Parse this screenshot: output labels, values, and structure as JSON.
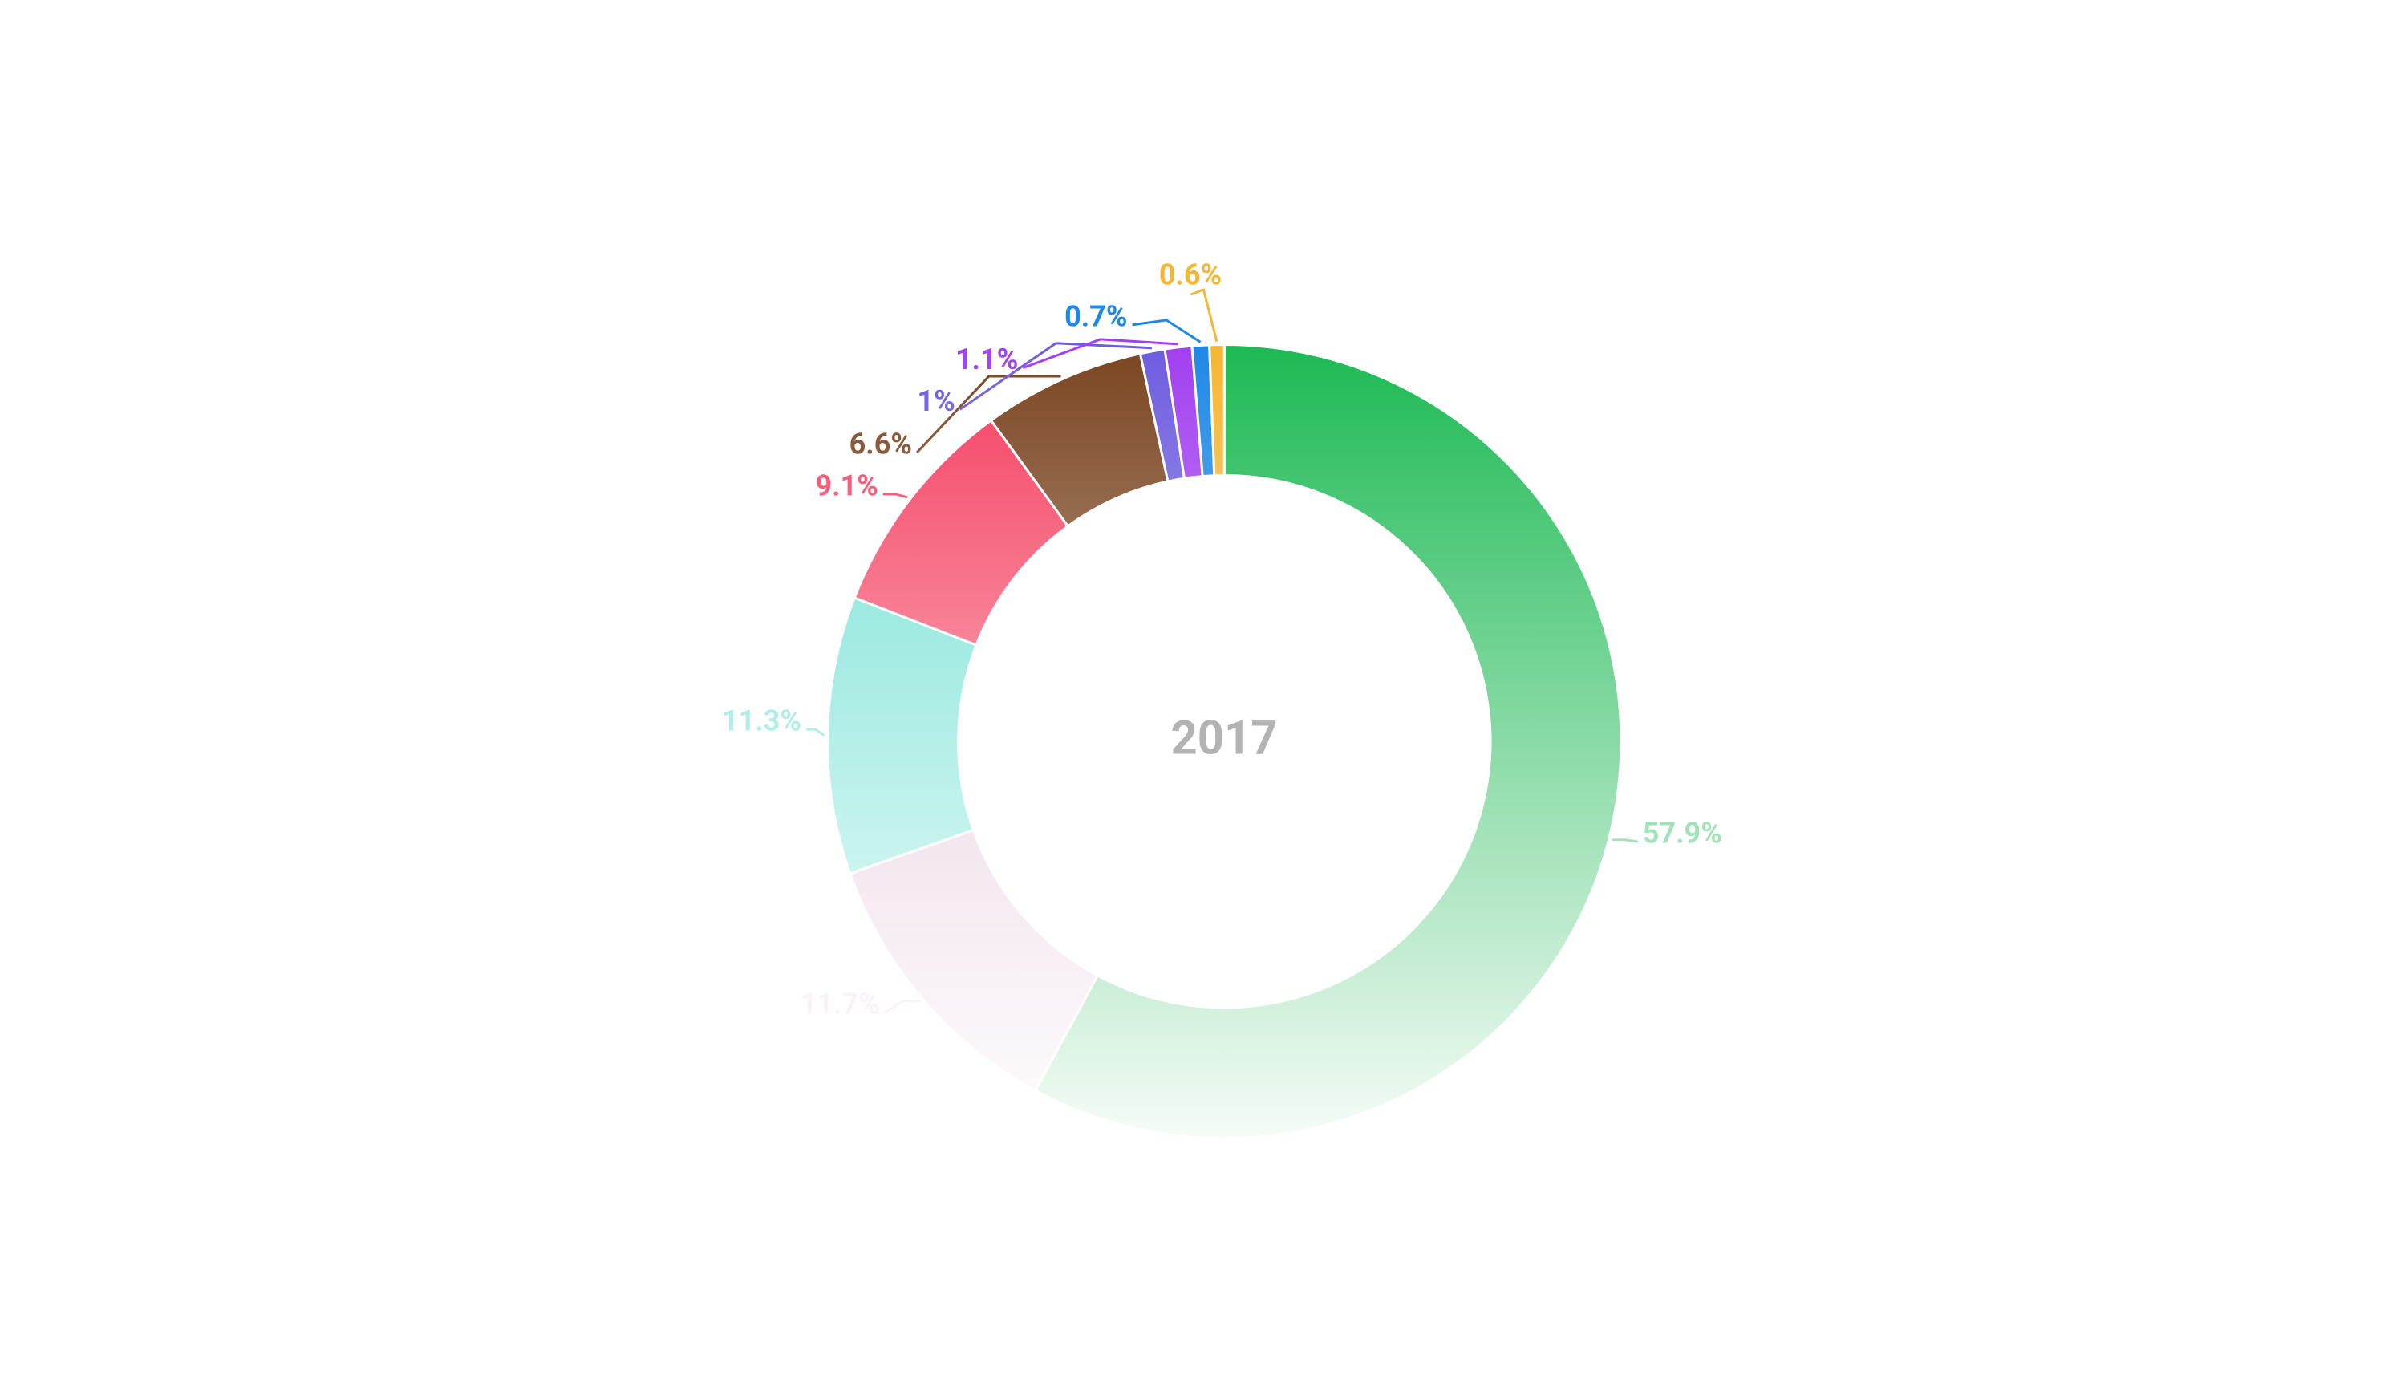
{
  "chart_data": {
    "type": "donut",
    "center_label": "2017",
    "categories": [
      null,
      null,
      null,
      null,
      null,
      null,
      null,
      null,
      null
    ],
    "values": [
      57.9,
      11.7,
      11.3,
      9.1,
      6.6,
      1,
      1.1,
      0.7,
      0.6
    ],
    "value_labels": [
      "57.9%",
      "11.7%",
      "11.3%",
      "9.1%",
      "6.6%",
      "1%",
      "1.1%",
      "0.7%",
      "0.6%"
    ],
    "colors": [
      "#1db954",
      "#e2c2d9",
      "#6fe0d3",
      "#f43d5e",
      "#7a4420",
      "#6e5ce0",
      "#a23ff0",
      "#1e88e5",
      "#f5b731"
    ]
  }
}
